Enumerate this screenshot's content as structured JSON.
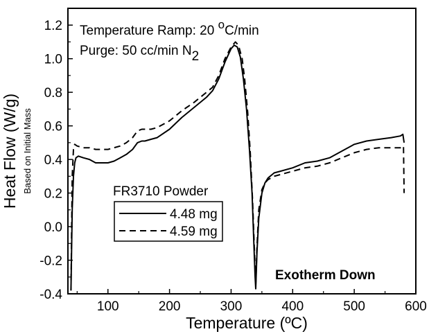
{
  "chart_data": {
    "type": "line",
    "xlabel": "Temperature (ºC)",
    "ylabel": "Heat Flow (W/g)",
    "ylabel_sub": "Based on Initial Mass",
    "xlim": [
      35,
      600
    ],
    "ylim": [
      -0.4,
      1.3
    ],
    "x_ticks": [
      100,
      200,
      300,
      400,
      500,
      600
    ],
    "y_ticks": [
      -0.4,
      -0.2,
      0.0,
      0.2,
      0.4,
      0.6,
      0.8,
      1.0,
      1.2
    ],
    "x_tick_labels": [
      "100",
      "200",
      "300",
      "400",
      "500",
      "600"
    ],
    "y_tick_labels": [
      "-0.4",
      "-0.2",
      "0.0",
      "0.2",
      "0.4",
      "0.6",
      "0.8",
      "1.0",
      "1.2"
    ],
    "annotations": {
      "ramp_text": "Temperature Ramp: 20 ",
      "ramp_sup": "o",
      "ramp_unit": "C/min",
      "purge_text": "Purge: 50 cc/min N",
      "purge_sub": "2",
      "exotherm": "Exotherm Down"
    },
    "legend": {
      "title": "FR3710 Powder",
      "placement": "lower-left"
    },
    "series": [
      {
        "name": "4.48 mg",
        "style": "solid",
        "color": "#000000",
        "points": [
          [
            40,
            -0.38
          ],
          [
            42,
            0.1
          ],
          [
            44,
            0.3
          ],
          [
            46,
            0.38
          ],
          [
            48,
            0.41
          ],
          [
            52,
            0.42
          ],
          [
            60,
            0.41
          ],
          [
            70,
            0.4
          ],
          [
            80,
            0.38
          ],
          [
            90,
            0.38
          ],
          [
            100,
            0.38
          ],
          [
            110,
            0.39
          ],
          [
            120,
            0.41
          ],
          [
            130,
            0.43
          ],
          [
            140,
            0.46
          ],
          [
            148,
            0.5
          ],
          [
            155,
            0.51
          ],
          [
            160,
            0.51
          ],
          [
            170,
            0.52
          ],
          [
            180,
            0.53
          ],
          [
            200,
            0.58
          ],
          [
            220,
            0.65
          ],
          [
            240,
            0.71
          ],
          [
            260,
            0.77
          ],
          [
            270,
            0.81
          ],
          [
            280,
            0.88
          ],
          [
            290,
            0.98
          ],
          [
            300,
            1.06
          ],
          [
            305,
            1.08
          ],
          [
            310,
            1.07
          ],
          [
            315,
            1.01
          ],
          [
            320,
            0.88
          ],
          [
            325,
            0.7
          ],
          [
            330,
            0.45
          ],
          [
            334,
            0.2
          ],
          [
            337,
            -0.1
          ],
          [
            339,
            -0.3
          ],
          [
            340,
            -0.37
          ],
          [
            342,
            -0.15
          ],
          [
            345,
            0.05
          ],
          [
            350,
            0.2
          ],
          [
            355,
            0.26
          ],
          [
            360,
            0.29
          ],
          [
            370,
            0.32
          ],
          [
            380,
            0.33
          ],
          [
            400,
            0.35
          ],
          [
            420,
            0.38
          ],
          [
            440,
            0.39
          ],
          [
            460,
            0.41
          ],
          [
            480,
            0.45
          ],
          [
            500,
            0.49
          ],
          [
            520,
            0.51
          ],
          [
            540,
            0.52
          ],
          [
            560,
            0.53
          ],
          [
            575,
            0.54
          ],
          [
            579,
            0.55
          ],
          [
            581,
            0.5
          ]
        ]
      },
      {
        "name": "4.59 mg",
        "style": "dashed",
        "color": "#000000",
        "points": [
          [
            40,
            -0.38
          ],
          [
            42,
            0.3
          ],
          [
            44,
            0.46
          ],
          [
            46,
            0.49
          ],
          [
            50,
            0.48
          ],
          [
            60,
            0.47
          ],
          [
            70,
            0.47
          ],
          [
            80,
            0.46
          ],
          [
            90,
            0.46
          ],
          [
            100,
            0.46
          ],
          [
            110,
            0.47
          ],
          [
            120,
            0.48
          ],
          [
            130,
            0.5
          ],
          [
            140,
            0.53
          ],
          [
            148,
            0.57
          ],
          [
            155,
            0.58
          ],
          [
            170,
            0.58
          ],
          [
            180,
            0.59
          ],
          [
            200,
            0.63
          ],
          [
            220,
            0.69
          ],
          [
            240,
            0.74
          ],
          [
            260,
            0.8
          ],
          [
            270,
            0.83
          ],
          [
            280,
            0.9
          ],
          [
            290,
            1.0
          ],
          [
            300,
            1.07
          ],
          [
            307,
            1.1
          ],
          [
            312,
            1.08
          ],
          [
            318,
            1.0
          ],
          [
            322,
            0.88
          ],
          [
            327,
            0.68
          ],
          [
            331,
            0.45
          ],
          [
            335,
            0.15
          ],
          [
            338,
            -0.15
          ],
          [
            340,
            -0.35
          ],
          [
            342,
            -0.12
          ],
          [
            345,
            0.1
          ],
          [
            350,
            0.22
          ],
          [
            355,
            0.26
          ],
          [
            360,
            0.28
          ],
          [
            370,
            0.3
          ],
          [
            380,
            0.31
          ],
          [
            400,
            0.33
          ],
          [
            420,
            0.35
          ],
          [
            440,
            0.36
          ],
          [
            460,
            0.38
          ],
          [
            480,
            0.41
          ],
          [
            500,
            0.44
          ],
          [
            520,
            0.46
          ],
          [
            540,
            0.47
          ],
          [
            560,
            0.47
          ],
          [
            575,
            0.47
          ],
          [
            580,
            0.48
          ],
          [
            581,
            0.2
          ]
        ]
      }
    ]
  }
}
